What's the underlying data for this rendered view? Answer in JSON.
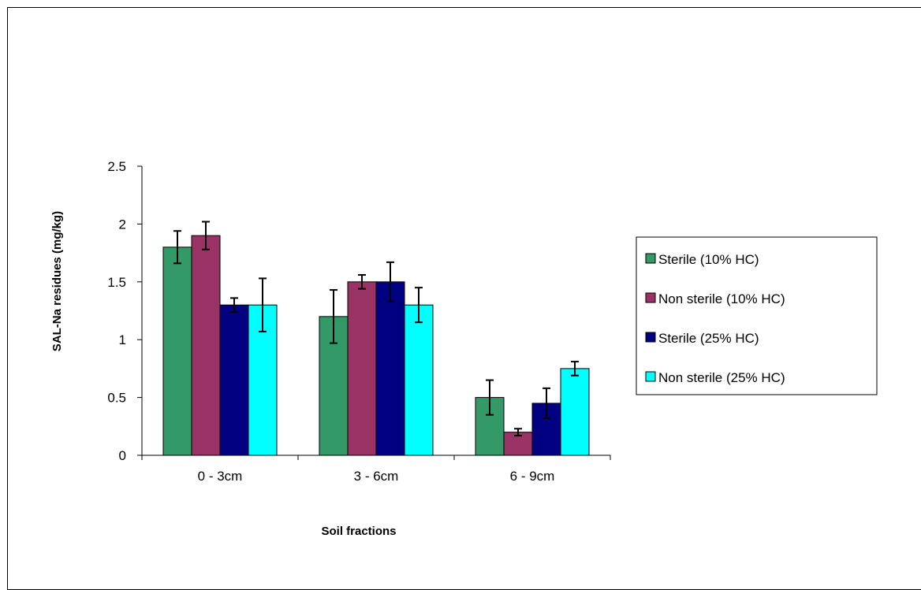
{
  "chart_data": {
    "type": "bar",
    "title": "",
    "xlabel": "Soil fractions",
    "ylabel": "SAL-Na residues (mg/kg)",
    "categories": [
      "0 - 3cm",
      "3 - 6cm",
      "6 - 9cm"
    ],
    "ylim": [
      0,
      2.5
    ],
    "yticks": [
      "0",
      "0.5",
      "1",
      "1.5",
      "2",
      "2.5"
    ],
    "grid": false,
    "legend_position": "right",
    "series": [
      {
        "name": "Sterile (10% HC)",
        "color": "#339966",
        "values": [
          1.8,
          1.2,
          0.5
        ],
        "errors": [
          0.14,
          0.23,
          0.15
        ]
      },
      {
        "name": "Non sterile (10% HC)",
        "color": "#993366",
        "values": [
          1.9,
          1.5,
          0.2
        ],
        "errors": [
          0.12,
          0.06,
          0.03
        ]
      },
      {
        "name": "Sterile (25% HC)",
        "color": "#000080",
        "values": [
          1.3,
          1.5,
          0.45
        ],
        "errors": [
          0.06,
          0.17,
          0.13
        ]
      },
      {
        "name": "Non sterile (25% HC)",
        "color": "#00FFFF",
        "values": [
          1.3,
          1.3,
          0.75
        ],
        "errors": [
          0.23,
          0.15,
          0.06
        ]
      }
    ]
  }
}
